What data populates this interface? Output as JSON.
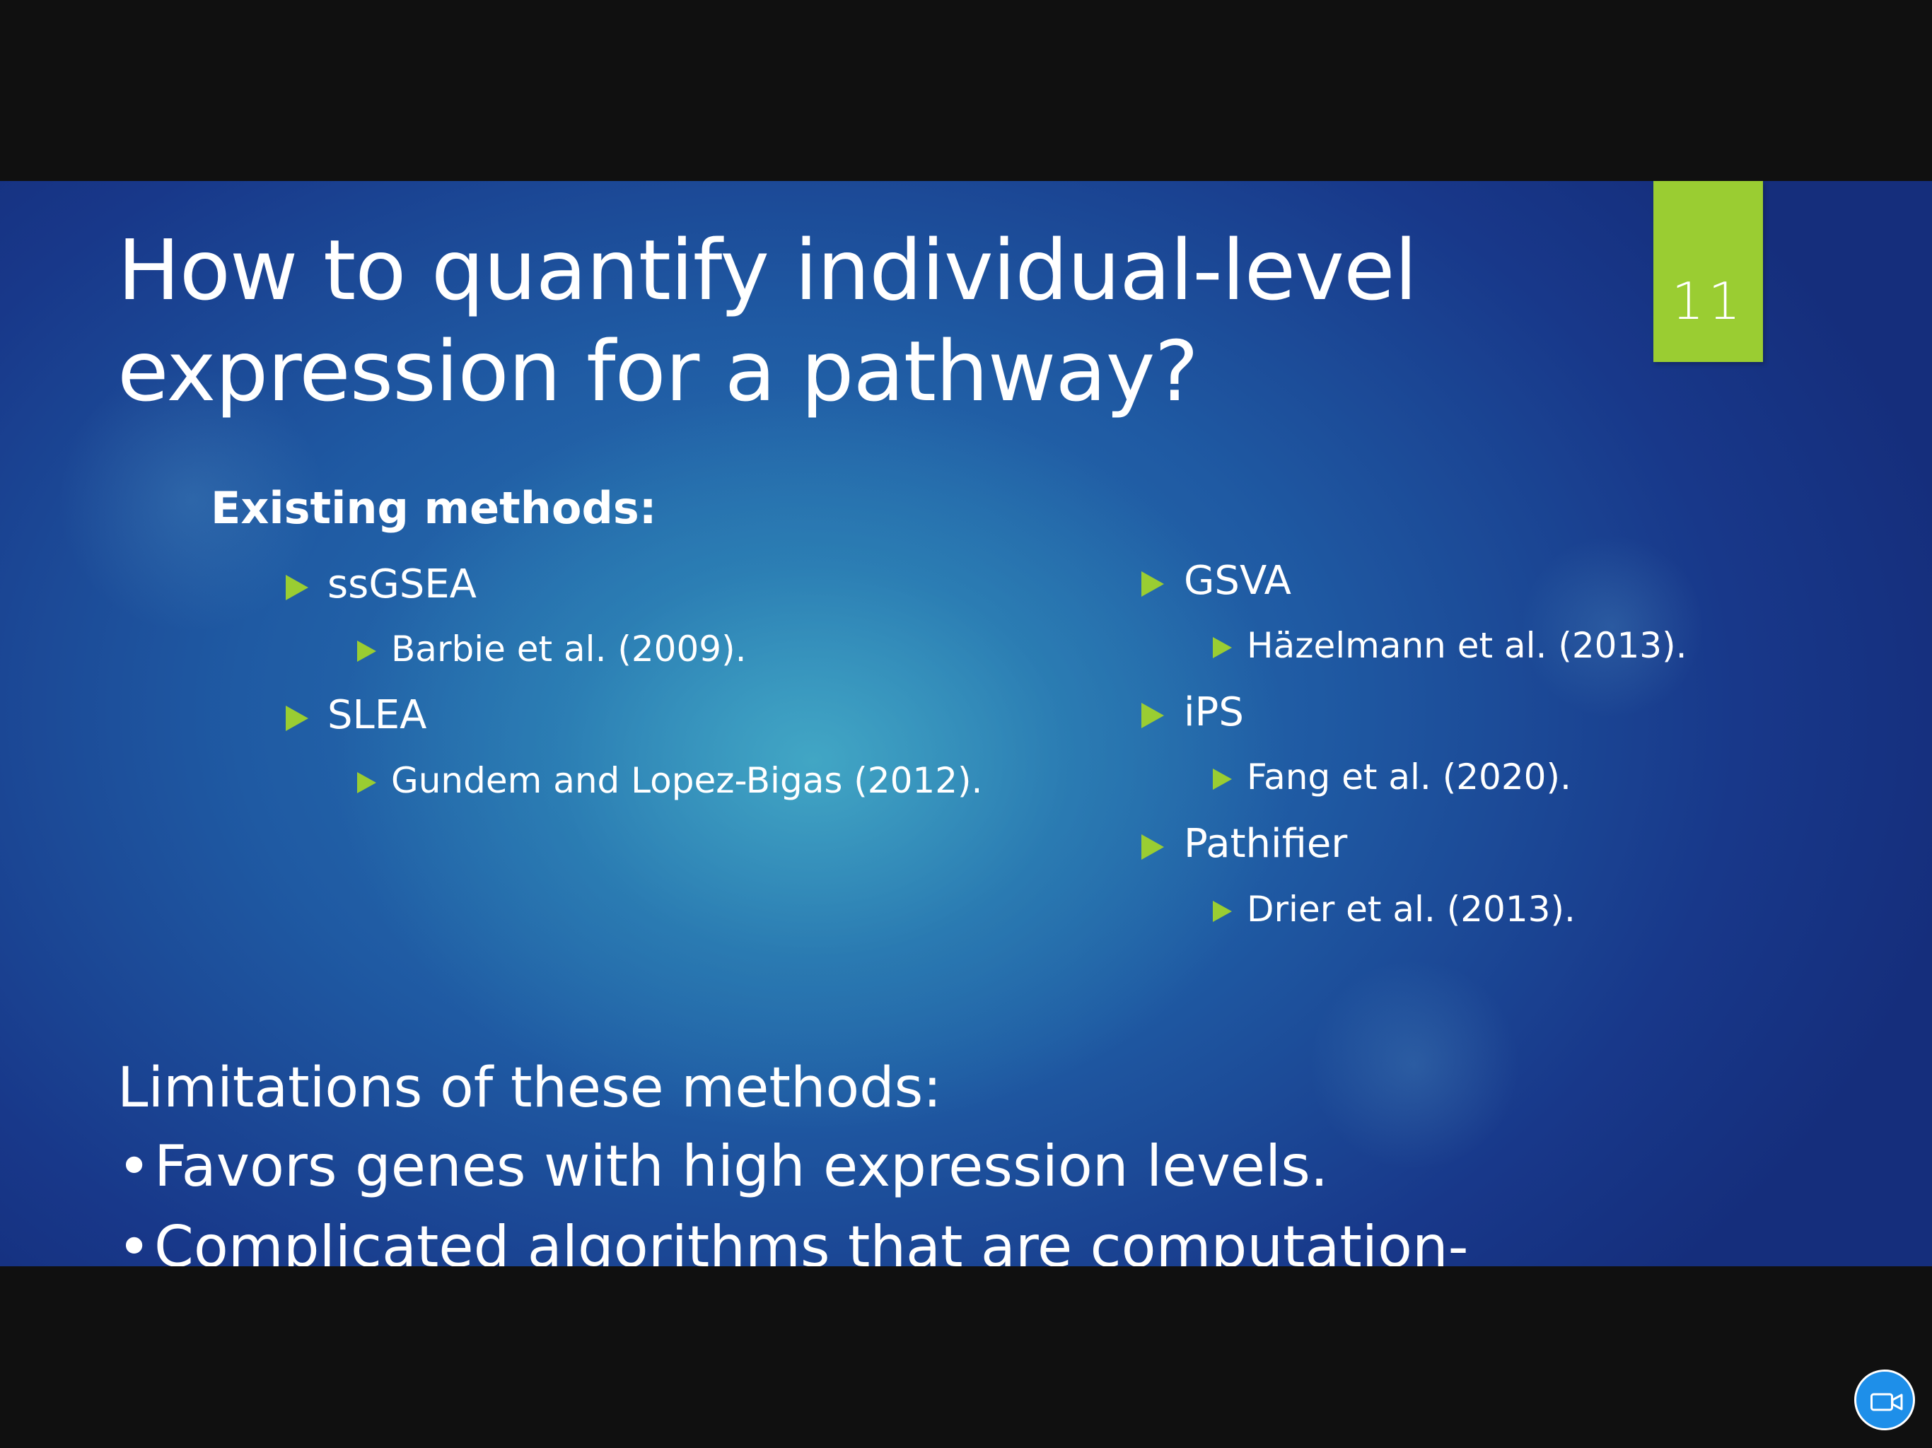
{
  "slide": {
    "number": "11",
    "title_lines": [
      "How to quantify individual-level",
      "expression for a pathway?"
    ],
    "existing_heading": "Existing methods:",
    "methods_left": [
      {
        "name": "ssGSEA",
        "ref": "Barbie et al. (2009)."
      },
      {
        "name": "SLEA",
        "ref": "Gundem and Lopez-Bigas (2012)."
      }
    ],
    "methods_right": [
      {
        "name": "GSVA",
        "ref": "Häzelmann et al. (2013)."
      },
      {
        "name": "iPS",
        "ref": "Fang et al. (2020)."
      },
      {
        "name": "Pathifier",
        "ref": "Drier et al. (2013)."
      }
    ],
    "limitations_heading": "Limitations of these methods:",
    "limitations": [
      "Favors genes with high expression levels.",
      "Complicated algorithms that are computation-intensive."
    ],
    "bullet_dot": "•"
  },
  "colors": {
    "accent": "#9acd32",
    "background_dark": "#101010",
    "slide_blue": "#1f5aa3",
    "camera_button": "#1e8fe9"
  },
  "icons": {
    "camera_button": "video-camera-icon",
    "bullet": "triangle-bullet-icon"
  }
}
